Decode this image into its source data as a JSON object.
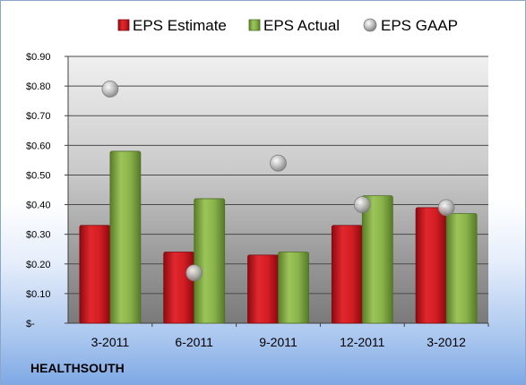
{
  "company": "HEALTHSOUTH",
  "chart_data": {
    "type": "bar",
    "categories": [
      "3-2011",
      "6-2011",
      "9-2011",
      "12-2011",
      "3-2012"
    ],
    "series": [
      {
        "name": "EPS Estimate",
        "kind": "bar",
        "color": "#c0141c",
        "values": [
          0.33,
          0.24,
          0.23,
          0.33,
          0.39
        ]
      },
      {
        "name": "EPS Actual",
        "kind": "bar",
        "color": "#77a03a",
        "values": [
          0.58,
          0.42,
          0.24,
          0.43,
          0.37
        ]
      },
      {
        "name": "EPS GAAP",
        "kind": "marker",
        "color": "#b0b0b0",
        "values": [
          0.79,
          0.17,
          0.54,
          0.4,
          0.39
        ]
      }
    ],
    "yticks": [
      "$-",
      "$0.10",
      "$0.20",
      "$0.30",
      "$0.40",
      "$0.50",
      "$0.60",
      "$0.70",
      "$0.80",
      "$0.90"
    ],
    "ylim": [
      0,
      0.9
    ],
    "grid": true,
    "legend_position": "top"
  }
}
